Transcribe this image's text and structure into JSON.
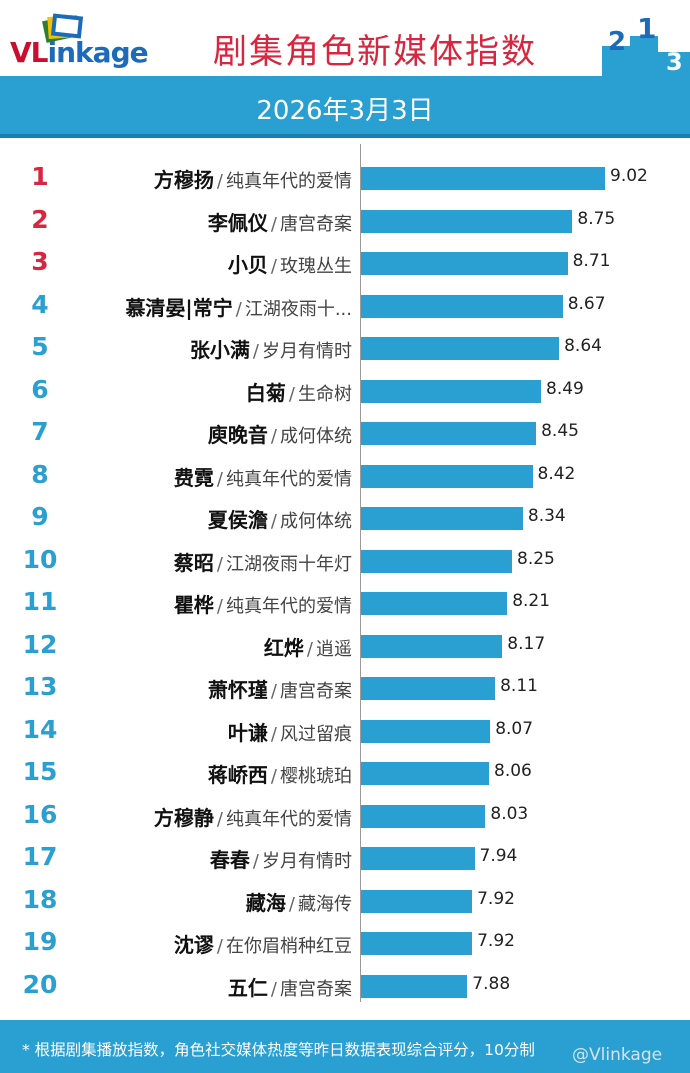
{
  "header": {
    "logo_text_vl": "VL",
    "logo_text_rest": "inkage",
    "title": "剧集角色新媒体指数",
    "podium_digits": [
      "2",
      "1",
      "3"
    ],
    "colors": {
      "title": "#d7263d",
      "accent": "#2a9fd1",
      "rank_top3": "#d7263d",
      "rank_other": "#2a9fd1"
    }
  },
  "date": "2026年3月3日",
  "separator": "/",
  "chart_data": {
    "type": "bar",
    "orientation": "horizontal",
    "title": "剧集角色新媒体指数",
    "subtitle": "2026年3月3日",
    "xlim": [
      7.0,
      9.3
    ],
    "ranks": [
      "1",
      "2",
      "3",
      "4",
      "5",
      "6",
      "7",
      "8",
      "9",
      "10",
      "11",
      "12",
      "13",
      "14",
      "15",
      "16",
      "17",
      "18",
      "19",
      "20"
    ],
    "categories": [
      {
        "name": "方穆扬",
        "show": "纯真年代的爱情"
      },
      {
        "name": "李佩仪",
        "show": "唐宫奇案"
      },
      {
        "name": "小贝",
        "show": "玫瑰丛生"
      },
      {
        "name": "慕清晏|常宁",
        "show": "江湖夜雨十..."
      },
      {
        "name": "张小满",
        "show": "岁月有情时"
      },
      {
        "name": "白菊",
        "show": "生命树"
      },
      {
        "name": "庾晚音",
        "show": "成何体统"
      },
      {
        "name": "费霓",
        "show": "纯真年代的爱情"
      },
      {
        "name": "夏侯澹",
        "show": "成何体统"
      },
      {
        "name": "蔡昭",
        "show": "江湖夜雨十年灯"
      },
      {
        "name": "瞿桦",
        "show": "纯真年代的爱情"
      },
      {
        "name": "红烨",
        "show": "逍遥"
      },
      {
        "name": "萧怀瑾",
        "show": "唐宫奇案"
      },
      {
        "name": "叶谦",
        "show": "风过留痕"
      },
      {
        "name": "蒋峤西",
        "show": "樱桃琥珀"
      },
      {
        "name": "方穆静",
        "show": "纯真年代的爱情"
      },
      {
        "name": "春春",
        "show": "岁月有情时"
      },
      {
        "name": "藏海",
        "show": "藏海传"
      },
      {
        "name": "沈谬",
        "show": "在你眉梢种红豆"
      },
      {
        "name": "五仁",
        "show": "唐宫奇案"
      }
    ],
    "values": [
      "9.02",
      "8.75",
      "8.71",
      "8.67",
      "8.64",
      "8.49",
      "8.45",
      "8.42",
      "8.34",
      "8.25",
      "8.21",
      "8.17",
      "8.11",
      "8.07",
      "8.06",
      "8.03",
      "7.94",
      "7.92",
      "7.92",
      "7.88"
    ]
  },
  "footer": {
    "note": "* 根据剧集播放指数，角色社交媒体热度等昨日数据表现综合评分，10分制",
    "watermark": "@Vlinkage"
  }
}
